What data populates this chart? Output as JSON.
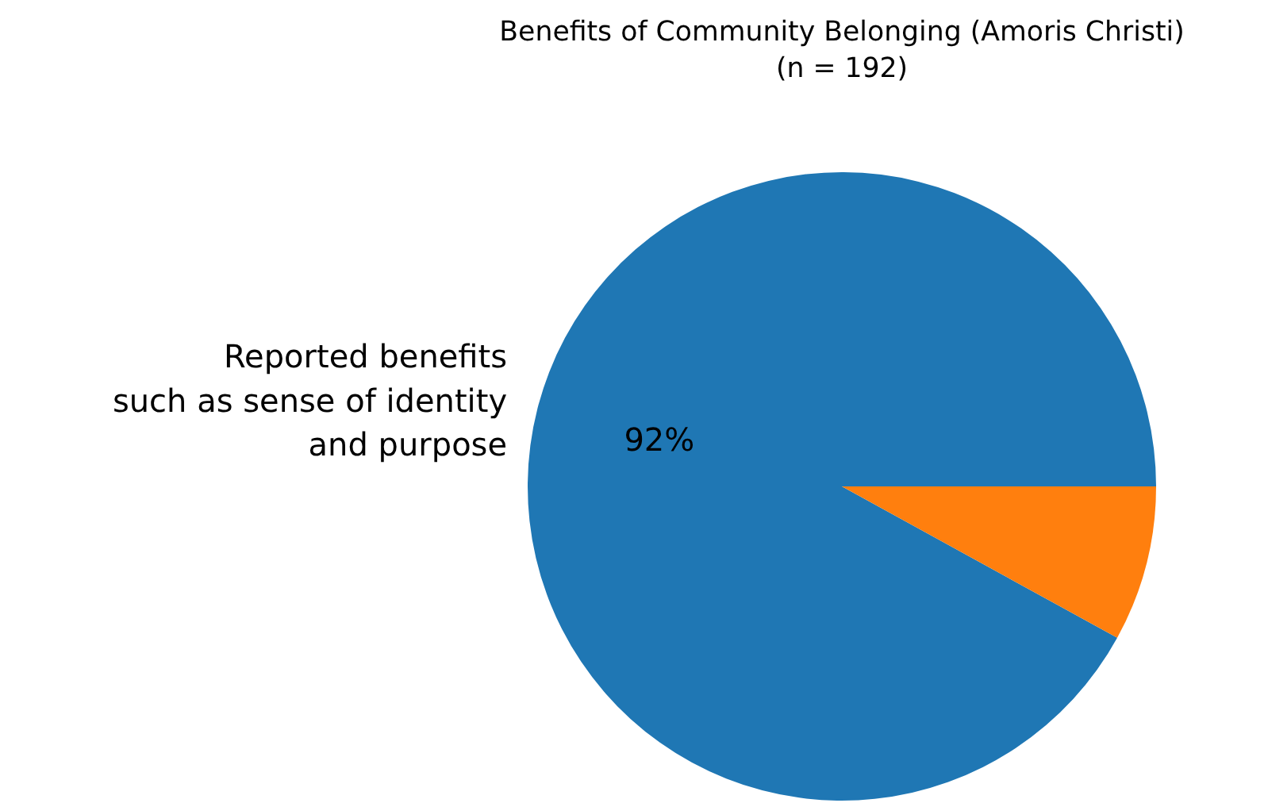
{
  "chart_data": {
    "type": "pie",
    "title": "Benefits of Community Belonging (Amoris Christi)\n(n = 192)",
    "categories": [
      "Reported benefits\nsuch as sense of identity\nand purpose",
      null
    ],
    "values": [
      92,
      8
    ],
    "colors": [
      "#1f77b4",
      "#ff7f0e"
    ],
    "value_labels": [
      "92%",
      null
    ]
  }
}
